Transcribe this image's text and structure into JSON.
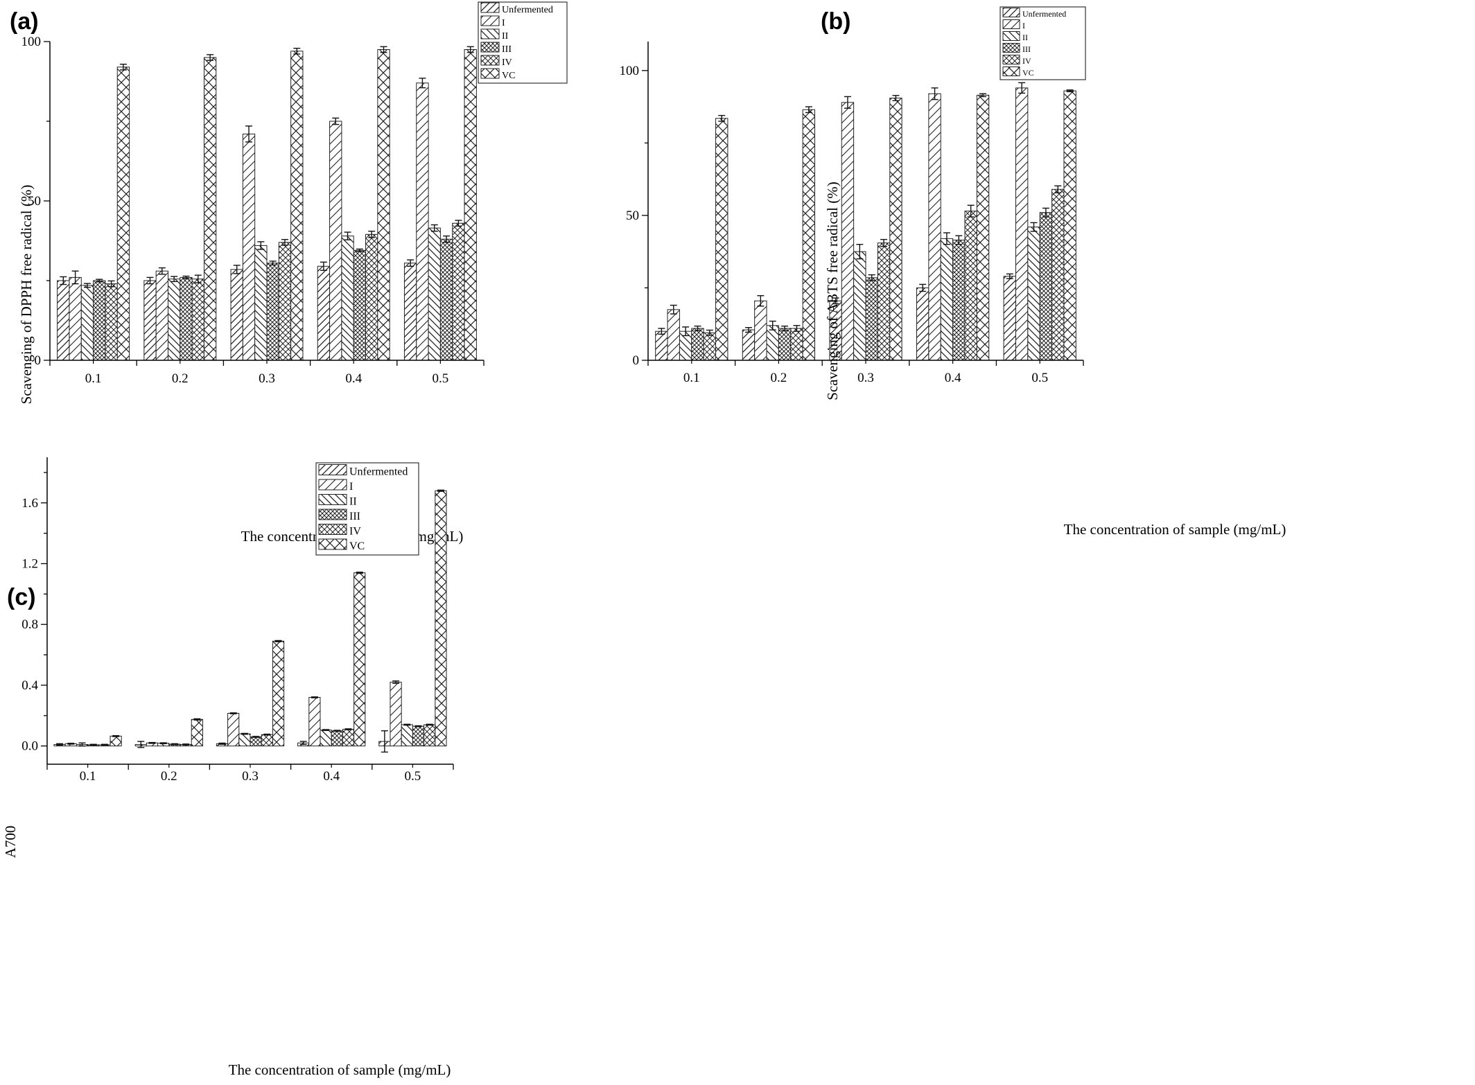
{
  "figure": {
    "panels": [
      {
        "letter": "(a)",
        "chart_data": {
          "type": "bar",
          "categories": [
            "0.1",
            "0.2",
            "0.3",
            "0.4",
            "0.5"
          ],
          "series": [
            {
              "name": "Unfermented",
              "values": [
                25,
                25,
                28.5,
                29.5,
                30.5
              ],
              "errors": [
                1.2,
                1,
                1.3,
                1.3,
                1
              ]
            },
            {
              "name": "I",
              "values": [
                26,
                28,
                71,
                75,
                87
              ],
              "errors": [
                2,
                1,
                2.5,
                1,
                1.5
              ]
            },
            {
              "name": "II",
              "values": [
                23.5,
                25.5,
                36,
                39,
                41.5
              ],
              "errors": [
                0.6,
                0.8,
                1.2,
                1.2,
                1
              ]
            },
            {
              "name": "III",
              "values": [
                25,
                26,
                30.5,
                34.5,
                38
              ],
              "errors": [
                0.4,
                0.4,
                0.6,
                0.4,
                1
              ]
            },
            {
              "name": "IV",
              "values": [
                24,
                25.5,
                37,
                39.5,
                43
              ],
              "errors": [
                0.9,
                1.2,
                0.9,
                1,
                0.9
              ]
            },
            {
              "name": "VC",
              "values": [
                92,
                95,
                97,
                97.5,
                97.5
              ],
              "errors": [
                0.9,
                0.9,
                0.9,
                0.9,
                0.9
              ]
            }
          ],
          "xlabel": "The concentration of sample (mg/mL)",
          "ylabel": "Scavenging of DPPH free radical (%)",
          "ylim": [
            0,
            100
          ],
          "yticks": [
            "0",
            "50",
            "100"
          ],
          "grid": false,
          "legend_placement": "top-right"
        }
      },
      {
        "letter": "(b)",
        "chart_data": {
          "type": "bar",
          "categories": [
            "0.1",
            "0.2",
            "0.3",
            "0.4",
            "0.5"
          ],
          "series": [
            {
              "name": "Unfermented",
              "values": [
                10,
                10.5,
                20.5,
                25,
                29
              ],
              "errors": [
                1,
                0.8,
                1,
                1.2,
                0.8
              ]
            },
            {
              "name": "I",
              "values": [
                17.5,
                20.5,
                89,
                92,
                94
              ],
              "errors": [
                1.5,
                1.8,
                2,
                2,
                1.8
              ]
            },
            {
              "name": "II",
              "values": [
                10,
                12,
                37.5,
                42,
                46
              ],
              "errors": [
                1.5,
                1.5,
                2.5,
                2,
                1.5
              ]
            },
            {
              "name": "III",
              "values": [
                11,
                11,
                28.5,
                41.5,
                51
              ],
              "errors": [
                0.8,
                0.8,
                1,
                1.5,
                1.5
              ]
            },
            {
              "name": "IV",
              "values": [
                9.5,
                11,
                40.5,
                51.5,
                59
              ],
              "errors": [
                0.9,
                1,
                1.2,
                2,
                1.2
              ]
            },
            {
              "name": "VC",
              "values": [
                83.5,
                86.5,
                90.5,
                91.5,
                93
              ],
              "errors": [
                1,
                1,
                0.9,
                0.5,
                0.3
              ]
            }
          ],
          "xlabel": "The concentration of sample (mg/mL)",
          "ylabel": "Scavenging of ABTS free radical (%)",
          "ylim": [
            0,
            110
          ],
          "yticks": [
            "0",
            "50",
            "100"
          ],
          "grid": false,
          "legend_placement": "top-right"
        }
      },
      {
        "letter": "(c)",
        "chart_data": {
          "type": "bar",
          "categories": [
            "0.1",
            "0.2",
            "0.3",
            "0.4",
            "0.5"
          ],
          "series": [
            {
              "name": "Unfermented",
              "values": [
                0.01,
                0.01,
                0.015,
                0.02,
                0.03
              ],
              "errors": [
                0.005,
                0.02,
                0.004,
                0.01,
                0.07
              ]
            },
            {
              "name": "I",
              "values": [
                0.015,
                0.02,
                0.215,
                0.32,
                0.42
              ],
              "errors": [
                0.003,
                0.003,
                0.003,
                0.003,
                0.008
              ]
            },
            {
              "name": "II",
              "values": [
                0.01,
                0.018,
                0.08,
                0.105,
                0.14
              ],
              "errors": [
                0.01,
                0.003,
                0.003,
                0.003,
                0.003
              ]
            },
            {
              "name": "III",
              "values": [
                0.008,
                0.012,
                0.06,
                0.1,
                0.13
              ],
              "errors": [
                0.003,
                0.003,
                0.003,
                0.003,
                0.003
              ]
            },
            {
              "name": "IV",
              "values": [
                0.008,
                0.01,
                0.075,
                0.11,
                0.14
              ],
              "errors": [
                0.003,
                0.003,
                0.003,
                0.003,
                0.003
              ]
            },
            {
              "name": "VC",
              "values": [
                0.065,
                0.175,
                0.69,
                1.14,
                1.68
              ],
              "errors": [
                0.003,
                0.004,
                0.004,
                0.004,
                0.004
              ]
            }
          ],
          "xlabel": "The concentration of sample (mg/mL)",
          "ylabel": "A700",
          "ylim": [
            -0.12,
            1.9
          ],
          "yticks": [
            "0.0",
            "0.4",
            "0.8",
            "1.2",
            "1.6"
          ],
          "grid": false,
          "legend_placement": "top-right"
        }
      }
    ]
  }
}
